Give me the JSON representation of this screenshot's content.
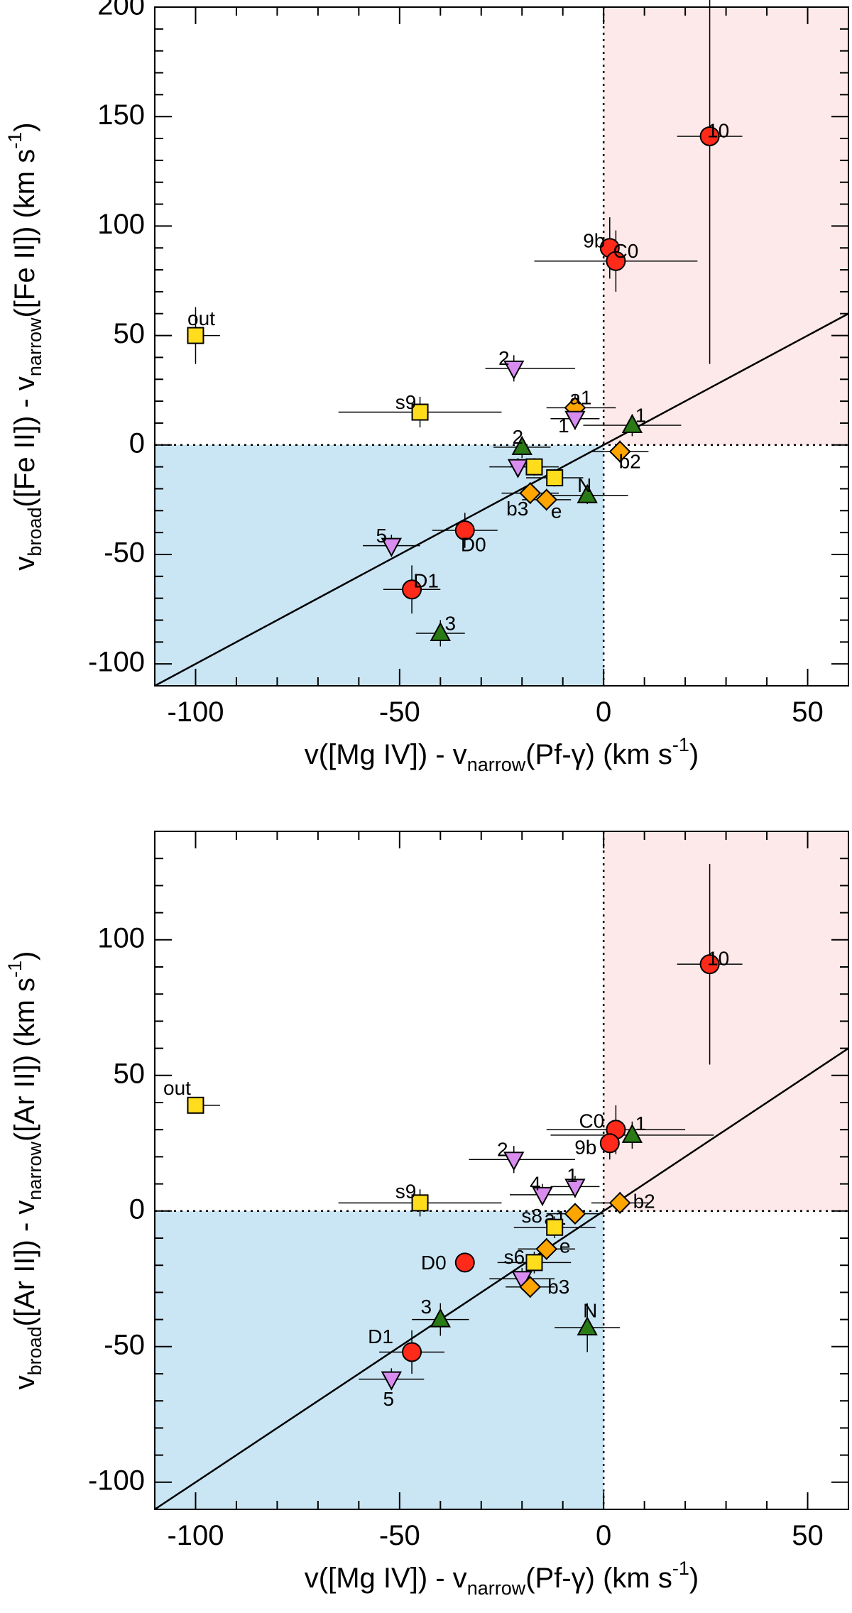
{
  "colors": {
    "red_pt": "#ff2a1a",
    "gold_pt": "#ffdd1c",
    "orange_pt": "#ffa500",
    "purple_pt": "#d98cf0",
    "green_pt": "#2a7a16",
    "blue_region": "#cae6f4",
    "pink_region": "#fde9e9"
  },
  "chart_data": [
    {
      "type": "scatter",
      "xlabel_main": "v([Mg IV]) - v",
      "xlabel_sub": "narrow",
      "xlabel_end": "(Pf-γ) (km s",
      "xlabel_sup": "-1",
      "xlabel_close": ")",
      "ylabel_main": "v",
      "ylabel_sub1": "broad",
      "ylabel_mid": "([Fe II]) - v",
      "ylabel_sub2": "narrow",
      "ylabel_end": "([Fe II]) (km s",
      "ylabel_sup": "-1",
      "ylabel_close": ")",
      "xlim": [
        -110,
        60
      ],
      "ylim": [
        -110,
        200
      ],
      "xticks": [
        -100,
        -50,
        0,
        50
      ],
      "xtick_labels": [
        "-100",
        "-50",
        "0",
        "50"
      ],
      "yticks": [
        -100,
        -50,
        0,
        50,
        100,
        150,
        200
      ],
      "ytick_labels": [
        "-100",
        "-50",
        "0",
        "50",
        "100",
        "150",
        "200"
      ],
      "points": [
        {
          "label": "10",
          "shape": "circle",
          "color": "red",
          "x": 26,
          "y": 141,
          "xerr": [
            8,
            8
          ],
          "yerr": [
            104,
            110
          ],
          "dx": 12,
          "dy": -6
        },
        {
          "label": "9b",
          "shape": "circle",
          "color": "red",
          "x": 1.5,
          "y": 90,
          "xerr": [
            0,
            0
          ],
          "yerr": [
            14,
            14
          ],
          "dx": -22,
          "dy": -8
        },
        {
          "label": "C0",
          "shape": "circle",
          "color": "red",
          "x": 3,
          "y": 84,
          "xerr": [
            20,
            20
          ],
          "yerr": [
            14,
            14
          ],
          "dx": 14,
          "dy": -12
        },
        {
          "label": "out",
          "shape": "square",
          "color": "gold",
          "x": -100,
          "y": 50,
          "xerr": [
            0,
            6
          ],
          "yerr": [
            13,
            13
          ],
          "dx": 8,
          "dy": -22
        },
        {
          "label": "2",
          "shape": "tri_down",
          "color": "purple",
          "x": -22,
          "y": 35,
          "xerr": [
            7,
            15
          ],
          "yerr": [
            6,
            6
          ],
          "dx": -14,
          "dy": -12
        },
        {
          "label": "s9",
          "shape": "square",
          "color": "gold",
          "x": -45,
          "y": 15,
          "xerr": [
            20,
            20
          ],
          "yerr": [
            7,
            7
          ],
          "dx": -20,
          "dy": -12
        },
        {
          "label": "a1",
          "shape": "diamond",
          "color": "orange",
          "x": -7,
          "y": 17,
          "xerr": [
            7,
            10
          ],
          "yerr": [
            6,
            6
          ],
          "dx": 8,
          "dy": -12
        },
        {
          "label": "1",
          "shape": "tri_down",
          "color": "purple",
          "x": -7,
          "y": 12,
          "xerr": [
            6,
            6
          ],
          "yerr": [
            5,
            5
          ],
          "dx": -16,
          "dy": 12
        },
        {
          "label": "1",
          "shape": "tri_up",
          "color": "green",
          "x": 7,
          "y": 9,
          "xerr": [
            12,
            12
          ],
          "yerr": [
            5,
            5
          ],
          "dx": 12,
          "dy": -12
        },
        {
          "label": "2",
          "shape": "tri_up",
          "color": "green",
          "x": -20,
          "y": -1,
          "xerr": [
            7,
            7
          ],
          "yerr": [
            5,
            5
          ],
          "dx": -6,
          "dy": -12
        },
        {
          "label": "b2",
          "shape": "diamond",
          "color": "orange",
          "x": 4,
          "y": -3,
          "xerr": [
            7,
            7
          ],
          "yerr": [
            5,
            5
          ],
          "dx": 14,
          "dy": 16
        },
        {
          "label": "",
          "shape": "tri_down",
          "color": "purple",
          "x": -21,
          "y": -10,
          "xerr": [
            7,
            7
          ],
          "yerr": [
            4,
            4
          ],
          "dx": 0,
          "dy": 0
        },
        {
          "label": "",
          "shape": "square",
          "color": "gold",
          "x": -17,
          "y": -10,
          "xerr": [
            6,
            6
          ],
          "yerr": [
            4,
            4
          ],
          "dx": 0,
          "dy": 0
        },
        {
          "label": "",
          "shape": "square",
          "color": "gold",
          "x": -12,
          "y": -15,
          "xerr": [
            7,
            7
          ],
          "yerr": [
            4,
            4
          ],
          "dx": 0,
          "dy": 0
        },
        {
          "label": "N",
          "shape": "tri_up",
          "color": "green",
          "x": -4,
          "y": -23,
          "xerr": [
            10,
            10
          ],
          "yerr": [
            4,
            4
          ],
          "dx": -4,
          "dy": -12
        },
        {
          "label": "b3",
          "shape": "diamond",
          "color": "orange",
          "x": -18,
          "y": -22,
          "xerr": [
            7,
            7
          ],
          "yerr": [
            5,
            5
          ],
          "dx": -18,
          "dy": 24
        },
        {
          "label": "e",
          "shape": "diamond",
          "color": "orange",
          "x": -14,
          "y": -25,
          "xerr": [
            6,
            6
          ],
          "yerr": [
            5,
            5
          ],
          "dx": 14,
          "dy": 18
        },
        {
          "label": "5",
          "shape": "tri_down",
          "color": "purple",
          "x": -52,
          "y": -46,
          "xerr": [
            7,
            7
          ],
          "yerr": [
            5,
            5
          ],
          "dx": -14,
          "dy": -12
        },
        {
          "label": "D0",
          "shape": "circle",
          "color": "red",
          "x": -34,
          "y": -39,
          "xerr": [
            8,
            8
          ],
          "yerr": [
            8,
            8
          ],
          "dx": 12,
          "dy": 22
        },
        {
          "label": "D1",
          "shape": "circle",
          "color": "red",
          "x": -47,
          "y": -66,
          "xerr": [
            7,
            7
          ],
          "yerr": [
            11,
            11
          ],
          "dx": 20,
          "dy": -10
        },
        {
          "label": "3",
          "shape": "tri_up",
          "color": "green",
          "x": -40,
          "y": -86,
          "xerr": [
            6,
            6
          ],
          "yerr": [
            6,
            6
          ],
          "dx": 14,
          "dy": -12
        }
      ]
    },
    {
      "type": "scatter",
      "xlabel_main": "v([Mg IV]) - v",
      "xlabel_sub": "narrow",
      "xlabel_end": "(Pf-γ) (km s",
      "xlabel_sup": "-1",
      "xlabel_close": ")",
      "ylabel_main": "v",
      "ylabel_sub1": "broad",
      "ylabel_mid": "([Ar II]) - v",
      "ylabel_sub2": "narrow",
      "ylabel_end": "([Ar II]) (km s",
      "ylabel_sup": "-1",
      "ylabel_close": ")",
      "xlim": [
        -110,
        60
      ],
      "ylim": [
        -110,
        140
      ],
      "xticks": [
        -100,
        -50,
        0,
        50
      ],
      "xtick_labels": [
        "-100",
        "-50",
        "0",
        "50"
      ],
      "yticks": [
        -100,
        -50,
        0,
        50,
        100
      ],
      "ytick_labels": [
        "-100",
        "-50",
        "0",
        "50",
        "100"
      ],
      "points": [
        {
          "label": "10",
          "shape": "circle",
          "color": "red",
          "x": 26,
          "y": 91,
          "xerr": [
            8,
            8
          ],
          "yerr": [
            37,
            37
          ],
          "dx": 12,
          "dy": -6
        },
        {
          "label": "out",
          "shape": "square",
          "color": "gold",
          "x": -100,
          "y": 39,
          "xerr": [
            0,
            6
          ],
          "yerr": [
            0,
            0
          ],
          "dx": -26,
          "dy": -22
        },
        {
          "label": "C0",
          "shape": "circle",
          "color": "red",
          "x": 3,
          "y": 30,
          "xerr": [
            17,
            17
          ],
          "yerr": [
            9,
            9
          ],
          "dx": -34,
          "dy": -10
        },
        {
          "label": "1",
          "shape": "tri_up",
          "color": "green",
          "x": 7,
          "y": 28,
          "xerr": [
            20,
            20
          ],
          "yerr": [
            5,
            5
          ],
          "dx": 12,
          "dy": -14
        },
        {
          "label": "9b",
          "shape": "circle",
          "color": "red",
          "x": 1.5,
          "y": 25,
          "xerr": [
            0,
            0
          ],
          "yerr": [
            6,
            6
          ],
          "dx": -34,
          "dy": 8
        },
        {
          "label": "2",
          "shape": "tri_down",
          "color": "purple",
          "x": -22,
          "y": 19,
          "xerr": [
            11,
            15
          ],
          "yerr": [
            5,
            5
          ],
          "dx": -16,
          "dy": -12
        },
        {
          "label": "1",
          "shape": "tri_down",
          "color": "purple",
          "x": -7,
          "y": 9,
          "xerr": [
            6,
            6
          ],
          "yerr": [
            4,
            4
          ],
          "dx": -4,
          "dy": -14
        },
        {
          "label": "4",
          "shape": "tri_down",
          "color": "purple",
          "x": -15,
          "y": 6,
          "xerr": [
            8,
            8
          ],
          "yerr": [
            4,
            4
          ],
          "dx": -10,
          "dy": -14
        },
        {
          "label": "s9",
          "shape": "square",
          "color": "gold",
          "x": -45,
          "y": 3,
          "xerr": [
            20,
            20
          ],
          "yerr": [
            5,
            5
          ],
          "dx": -20,
          "dy": -14
        },
        {
          "label": "b2",
          "shape": "diamond",
          "color": "orange",
          "x": 4,
          "y": 3,
          "xerr": [
            7,
            7
          ],
          "yerr": [
            4,
            4
          ],
          "dx": 34,
          "dy": 0
        },
        {
          "label": "a1",
          "shape": "diamond",
          "color": "orange",
          "x": -7,
          "y": -1,
          "xerr": [
            7,
            7
          ],
          "yerr": [
            3,
            3
          ],
          "dx": -28,
          "dy": 8
        },
        {
          "label": "s8",
          "shape": "square",
          "color": "gold",
          "x": -12,
          "y": -6,
          "xerr": [
            10,
            10
          ],
          "yerr": [
            4,
            4
          ],
          "dx": -32,
          "dy": -14
        },
        {
          "label": "e",
          "shape": "diamond",
          "color": "orange",
          "x": -14,
          "y": -14,
          "xerr": [
            7,
            7
          ],
          "yerr": [
            4,
            4
          ],
          "dx": 26,
          "dy": -2
        },
        {
          "label": "s6",
          "shape": "square",
          "color": "gold",
          "x": -17,
          "y": -19,
          "xerr": [
            9,
            9
          ],
          "yerr": [
            4,
            4
          ],
          "dx": -28,
          "dy": -6
        },
        {
          "label": "D0",
          "shape": "circle",
          "color": "red",
          "x": -34,
          "y": -19,
          "xerr": [
            0,
            0
          ],
          "yerr": [
            0,
            0
          ],
          "dx": -44,
          "dy": 2
        },
        {
          "label": "",
          "shape": "tri_down",
          "color": "purple",
          "x": -20,
          "y": -25,
          "xerr": [
            8,
            8
          ],
          "yerr": [
            4,
            4
          ],
          "dx": 0,
          "dy": 0
        },
        {
          "label": "b3",
          "shape": "diamond",
          "color": "orange",
          "x": -18,
          "y": -28,
          "xerr": [
            6,
            6
          ],
          "yerr": [
            4,
            4
          ],
          "dx": 40,
          "dy": 2
        },
        {
          "label": "3",
          "shape": "tri_up",
          "color": "green",
          "x": -40,
          "y": -40,
          "xerr": [
            7,
            7
          ],
          "yerr": [
            6,
            6
          ],
          "dx": -20,
          "dy": -16
        },
        {
          "label": "N",
          "shape": "tri_up",
          "color": "green",
          "x": -4,
          "y": -43,
          "xerr": [
            8,
            8
          ],
          "yerr": [
            9,
            9
          ],
          "dx": 4,
          "dy": -22
        },
        {
          "label": "D1",
          "shape": "circle",
          "color": "red",
          "x": -47,
          "y": -52,
          "xerr": [
            8,
            8
          ],
          "yerr": [
            8,
            8
          ],
          "dx": -44,
          "dy": -20
        },
        {
          "label": "5",
          "shape": "tri_down",
          "color": "purple",
          "x": -52,
          "y": -62,
          "xerr": [
            8,
            8
          ],
          "yerr": [
            4,
            4
          ],
          "dx": -4,
          "dy": 30
        }
      ]
    }
  ]
}
